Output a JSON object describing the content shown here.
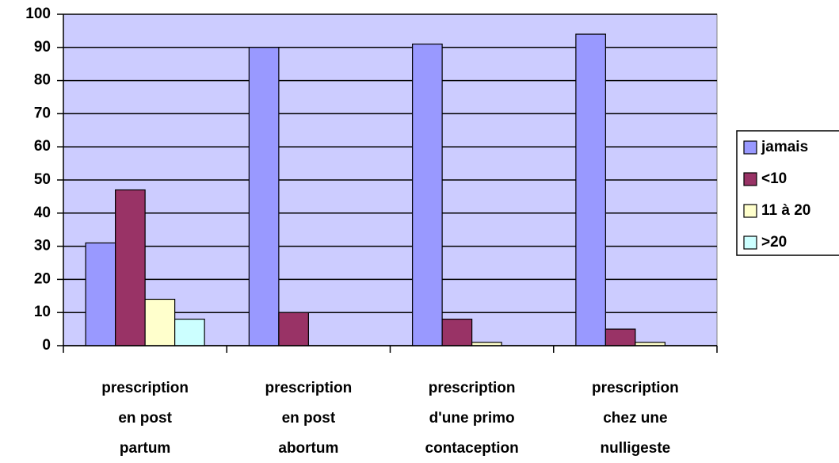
{
  "chart_data": {
    "type": "bar",
    "categories": [
      [
        "prescription",
        "en post",
        "partum"
      ],
      [
        "prescription",
        "en post",
        "abortum"
      ],
      [
        "prescription",
        "d'une primo",
        "contaception"
      ],
      [
        "prescription",
        "chez une",
        "nulligeste"
      ]
    ],
    "series": [
      {
        "name": "jamais",
        "color": "#9999ff",
        "values": [
          31,
          90,
          91,
          94
        ]
      },
      {
        "name": "<10",
        "color": "#993366",
        "values": [
          47,
          10,
          8,
          5
        ]
      },
      {
        "name": "11 à 20",
        "color": "#ffffcc",
        "values": [
          14,
          0,
          1,
          1
        ]
      },
      {
        "name": ">20",
        "color": "#ccffff",
        "values": [
          8,
          0,
          0,
          0
        ]
      }
    ],
    "ylim": [
      0,
      100
    ],
    "yticks": [
      0,
      10,
      20,
      30,
      40,
      50,
      60,
      70,
      80,
      90,
      100
    ],
    "grid": true,
    "legend": "right",
    "plot_background": "#ccccff"
  }
}
